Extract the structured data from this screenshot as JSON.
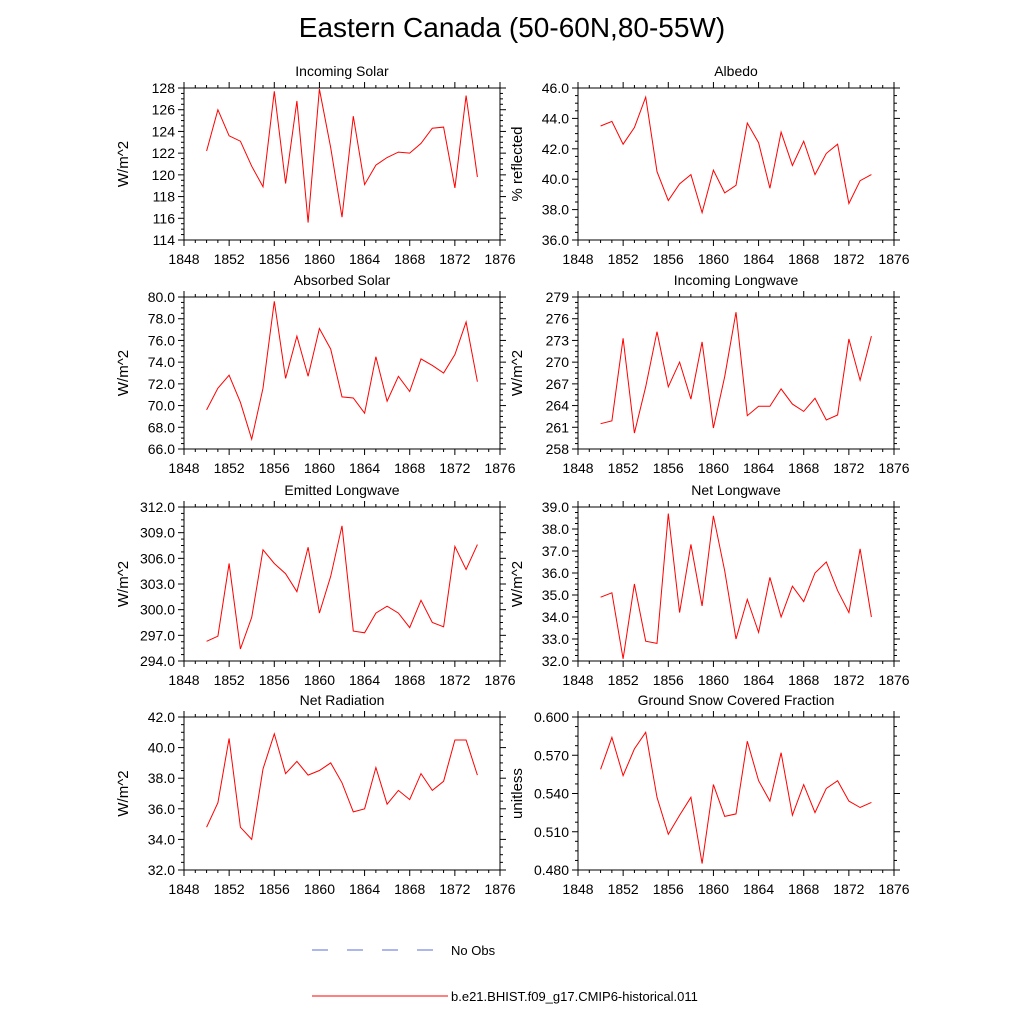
{
  "title": "Eastern Canada (50-60N,80-55W)",
  "legend": [
    {
      "label": "No Obs",
      "color": "#5b6fd6",
      "dash": true
    },
    {
      "label": "b.e21.BHIST.f09_g17.CMIP6-historical.011",
      "color": "#ff0000",
      "dash": false
    }
  ],
  "chart_data": [
    {
      "type": "line",
      "title": "Incoming Solar",
      "xlabel": "",
      "ylabel": "W/m^2",
      "xlim": [
        1848,
        1876
      ],
      "ylim": [
        114,
        128
      ],
      "xticks": [
        1848,
        1852,
        1856,
        1860,
        1864,
        1868,
        1872,
        1876
      ],
      "xticklabels": [
        "1848",
        "1852",
        "1856",
        "1860",
        "1864",
        "1868",
        "1872",
        "1876"
      ],
      "yticks": [
        114,
        116,
        118,
        120,
        122,
        124,
        126,
        128
      ],
      "yticklabels": [
        "114",
        "116",
        "118",
        "120",
        "122",
        "124",
        "126",
        "128"
      ],
      "x": [
        1850,
        1851,
        1852,
        1853,
        1854,
        1855,
        1856,
        1857,
        1858,
        1859,
        1860,
        1861,
        1862,
        1863,
        1864,
        1865,
        1866,
        1867,
        1868,
        1869,
        1870,
        1871,
        1872,
        1873,
        1874
      ],
      "series": [
        {
          "name": "b.e21.BHIST.f09_g17.CMIP6-historical.011",
          "values": [
            122.2,
            126.0,
            123.6,
            123.1,
            120.8,
            118.9,
            127.7,
            119.2,
            126.8,
            115.6,
            127.9,
            122.5,
            116.1,
            125.4,
            119.1,
            120.9,
            121.6,
            122.1,
            122.0,
            122.9,
            124.3,
            124.4,
            118.8,
            127.3,
            119.8
          ]
        }
      ]
    },
    {
      "type": "line",
      "title": "Albedo",
      "xlabel": "",
      "ylabel": "% reflected",
      "xlim": [
        1848,
        1876
      ],
      "ylim": [
        36,
        46
      ],
      "xticks": [
        1848,
        1852,
        1856,
        1860,
        1864,
        1868,
        1872,
        1876
      ],
      "xticklabels": [
        "1848",
        "1852",
        "1856",
        "1860",
        "1864",
        "1868",
        "1872",
        "1876"
      ],
      "yticks": [
        36,
        38,
        40,
        42,
        44,
        46
      ],
      "yticklabels": [
        "36.0",
        "38.0",
        "40.0",
        "42.0",
        "44.0",
        "46.0"
      ],
      "x": [
        1850,
        1851,
        1852,
        1853,
        1854,
        1855,
        1856,
        1857,
        1858,
        1859,
        1860,
        1861,
        1862,
        1863,
        1864,
        1865,
        1866,
        1867,
        1868,
        1869,
        1870,
        1871,
        1872,
        1873,
        1874
      ],
      "series": [
        {
          "name": "b.e21.BHIST.f09_g17.CMIP6-historical.011",
          "values": [
            43.5,
            43.8,
            42.3,
            43.4,
            45.4,
            40.5,
            38.6,
            39.7,
            40.3,
            37.8,
            40.6,
            39.1,
            39.6,
            43.7,
            42.4,
            39.4,
            43.1,
            40.9,
            42.5,
            40.3,
            41.7,
            42.3,
            38.4,
            39.9,
            40.3
          ]
        }
      ]
    },
    {
      "type": "line",
      "title": "Absorbed Solar",
      "xlabel": "",
      "ylabel": "W/m^2",
      "xlim": [
        1848,
        1876
      ],
      "ylim": [
        66,
        80
      ],
      "xticks": [
        1848,
        1852,
        1856,
        1860,
        1864,
        1868,
        1872,
        1876
      ],
      "xticklabels": [
        "1848",
        "1852",
        "1856",
        "1860",
        "1864",
        "1868",
        "1872",
        "1876"
      ],
      "yticks": [
        66,
        68,
        70,
        72,
        74,
        76,
        78,
        80
      ],
      "yticklabels": [
        "66.0",
        "68.0",
        "70.0",
        "72.0",
        "74.0",
        "76.0",
        "78.0",
        "80.0"
      ],
      "x": [
        1850,
        1851,
        1852,
        1853,
        1854,
        1855,
        1856,
        1857,
        1858,
        1859,
        1860,
        1861,
        1862,
        1863,
        1864,
        1865,
        1866,
        1867,
        1868,
        1869,
        1870,
        1871,
        1872,
        1873,
        1874
      ],
      "series": [
        {
          "name": "b.e21.BHIST.f09_g17.CMIP6-historical.011",
          "values": [
            69.6,
            71.6,
            72.8,
            70.3,
            66.9,
            71.6,
            79.6,
            72.5,
            76.4,
            72.7,
            77.1,
            75.2,
            70.8,
            70.7,
            69.3,
            74.5,
            70.4,
            72.7,
            71.3,
            74.3,
            73.7,
            73.0,
            74.7,
            77.7,
            72.2
          ]
        }
      ]
    },
    {
      "type": "line",
      "title": "Incoming Longwave",
      "xlabel": "",
      "ylabel": "W/m^2",
      "xlim": [
        1848,
        1876
      ],
      "ylim": [
        258,
        279
      ],
      "xticks": [
        1848,
        1852,
        1856,
        1860,
        1864,
        1868,
        1872,
        1876
      ],
      "xticklabels": [
        "1848",
        "1852",
        "1856",
        "1860",
        "1864",
        "1868",
        "1872",
        "1876"
      ],
      "yticks": [
        258,
        261,
        264,
        267,
        270,
        273,
        276,
        279
      ],
      "yticklabels": [
        "258",
        "261",
        "264",
        "267",
        "270",
        "273",
        "276",
        "279"
      ],
      "x": [
        1850,
        1851,
        1852,
        1853,
        1854,
        1855,
        1856,
        1857,
        1858,
        1859,
        1860,
        1861,
        1862,
        1863,
        1864,
        1865,
        1866,
        1867,
        1868,
        1869,
        1870,
        1871,
        1872,
        1873,
        1874
      ],
      "series": [
        {
          "name": "b.e21.BHIST.f09_g17.CMIP6-historical.011",
          "values": [
            261.5,
            261.9,
            273.3,
            260.2,
            266.6,
            274.2,
            266.6,
            270.0,
            264.9,
            272.8,
            260.9,
            268.0,
            276.9,
            262.6,
            263.9,
            263.9,
            266.3,
            264.2,
            263.2,
            265.0,
            262.0,
            262.7,
            273.2,
            267.5,
            273.6
          ]
        }
      ]
    },
    {
      "type": "line",
      "title": "Emitted Longwave",
      "xlabel": "",
      "ylabel": "W/m^2",
      "xlim": [
        1848,
        1876
      ],
      "ylim": [
        294,
        312
      ],
      "xticks": [
        1848,
        1852,
        1856,
        1860,
        1864,
        1868,
        1872,
        1876
      ],
      "xticklabels": [
        "1848",
        "1852",
        "1856",
        "1860",
        "1864",
        "1868",
        "1872",
        "1876"
      ],
      "yticks": [
        294,
        297,
        300,
        303,
        306,
        309,
        312
      ],
      "yticklabels": [
        "294.0",
        "297.0",
        "300.0",
        "303.0",
        "306.0",
        "309.0",
        "312.0"
      ],
      "x": [
        1850,
        1851,
        1852,
        1853,
        1854,
        1855,
        1856,
        1857,
        1858,
        1859,
        1860,
        1861,
        1862,
        1863,
        1864,
        1865,
        1866,
        1867,
        1868,
        1869,
        1870,
        1871,
        1872,
        1873,
        1874
      ],
      "series": [
        {
          "name": "b.e21.BHIST.f09_g17.CMIP6-historical.011",
          "values": [
            296.3,
            296.9,
            305.4,
            295.4,
            299.1,
            307.0,
            305.4,
            304.2,
            302.1,
            307.3,
            299.6,
            303.9,
            309.8,
            297.5,
            297.3,
            299.6,
            300.4,
            299.6,
            297.9,
            301.1,
            298.5,
            298.0,
            307.4,
            304.7,
            307.6
          ]
        }
      ]
    },
    {
      "type": "line",
      "title": "Net Longwave",
      "xlabel": "",
      "ylabel": "W/m^2",
      "xlim": [
        1848,
        1876
      ],
      "ylim": [
        32,
        39
      ],
      "xticks": [
        1848,
        1852,
        1856,
        1860,
        1864,
        1868,
        1872,
        1876
      ],
      "xticklabels": [
        "1848",
        "1852",
        "1856",
        "1860",
        "1864",
        "1868",
        "1872",
        "1876"
      ],
      "yticks": [
        32,
        33,
        34,
        35,
        36,
        37,
        38,
        39
      ],
      "yticklabels": [
        "32.0",
        "33.0",
        "34.0",
        "35.0",
        "36.0",
        "37.0",
        "38.0",
        "39.0"
      ],
      "x": [
        1850,
        1851,
        1852,
        1853,
        1854,
        1855,
        1856,
        1857,
        1858,
        1859,
        1860,
        1861,
        1862,
        1863,
        1864,
        1865,
        1866,
        1867,
        1868,
        1869,
        1870,
        1871,
        1872,
        1873,
        1874
      ],
      "series": [
        {
          "name": "b.e21.BHIST.f09_g17.CMIP6-historical.011",
          "values": [
            34.9,
            35.1,
            32.1,
            35.5,
            32.9,
            32.8,
            38.7,
            34.2,
            37.3,
            34.5,
            38.6,
            36.1,
            33.0,
            34.8,
            33.3,
            35.8,
            34.0,
            35.4,
            34.7,
            36.0,
            36.5,
            35.2,
            34.2,
            37.1,
            34.0
          ]
        }
      ]
    },
    {
      "type": "line",
      "title": "Net Radiation",
      "xlabel": "",
      "ylabel": "W/m^2",
      "xlim": [
        1848,
        1876
      ],
      "ylim": [
        32,
        42
      ],
      "xticks": [
        1848,
        1852,
        1856,
        1860,
        1864,
        1868,
        1872,
        1876
      ],
      "xticklabels": [
        "1848",
        "1852",
        "1856",
        "1860",
        "1864",
        "1868",
        "1872",
        "1876"
      ],
      "yticks": [
        32,
        34,
        36,
        38,
        40,
        42
      ],
      "yticklabels": [
        "32.0",
        "34.0",
        "36.0",
        "38.0",
        "40.0",
        "42.0"
      ],
      "x": [
        1850,
        1851,
        1852,
        1853,
        1854,
        1855,
        1856,
        1857,
        1858,
        1859,
        1860,
        1861,
        1862,
        1863,
        1864,
        1865,
        1866,
        1867,
        1868,
        1869,
        1870,
        1871,
        1872,
        1873,
        1874
      ],
      "series": [
        {
          "name": "b.e21.BHIST.f09_g17.CMIP6-historical.011",
          "values": [
            34.8,
            36.4,
            40.6,
            34.8,
            34.0,
            38.6,
            40.9,
            38.3,
            39.1,
            38.2,
            38.5,
            39.0,
            37.7,
            35.8,
            36.0,
            38.7,
            36.3,
            37.2,
            36.6,
            38.3,
            37.2,
            37.8,
            40.5,
            40.5,
            38.2
          ]
        }
      ]
    },
    {
      "type": "line",
      "title": "Ground Snow Covered Fraction",
      "xlabel": "",
      "ylabel": "unitless",
      "xlim": [
        1848,
        1876
      ],
      "ylim": [
        0.48,
        0.6
      ],
      "xticks": [
        1848,
        1852,
        1856,
        1860,
        1864,
        1868,
        1872,
        1876
      ],
      "xticklabels": [
        "1848",
        "1852",
        "1856",
        "1860",
        "1864",
        "1868",
        "1872",
        "1876"
      ],
      "yticks": [
        0.48,
        0.51,
        0.54,
        0.57,
        0.6
      ],
      "yticklabels": [
        "0.480",
        "0.510",
        "0.540",
        "0.570",
        "0.600"
      ],
      "x": [
        1850,
        1851,
        1852,
        1853,
        1854,
        1855,
        1856,
        1857,
        1858,
        1859,
        1860,
        1861,
        1862,
        1863,
        1864,
        1865,
        1866,
        1867,
        1868,
        1869,
        1870,
        1871,
        1872,
        1873,
        1874
      ],
      "series": [
        {
          "name": "b.e21.BHIST.f09_g17.CMIP6-historical.011",
          "values": [
            0.559,
            0.584,
            0.554,
            0.575,
            0.588,
            0.537,
            0.508,
            0.523,
            0.537,
            0.485,
            0.547,
            0.522,
            0.524,
            0.581,
            0.55,
            0.534,
            0.572,
            0.523,
            0.547,
            0.525,
            0.544,
            0.55,
            0.534,
            0.529,
            0.533
          ]
        }
      ]
    }
  ]
}
